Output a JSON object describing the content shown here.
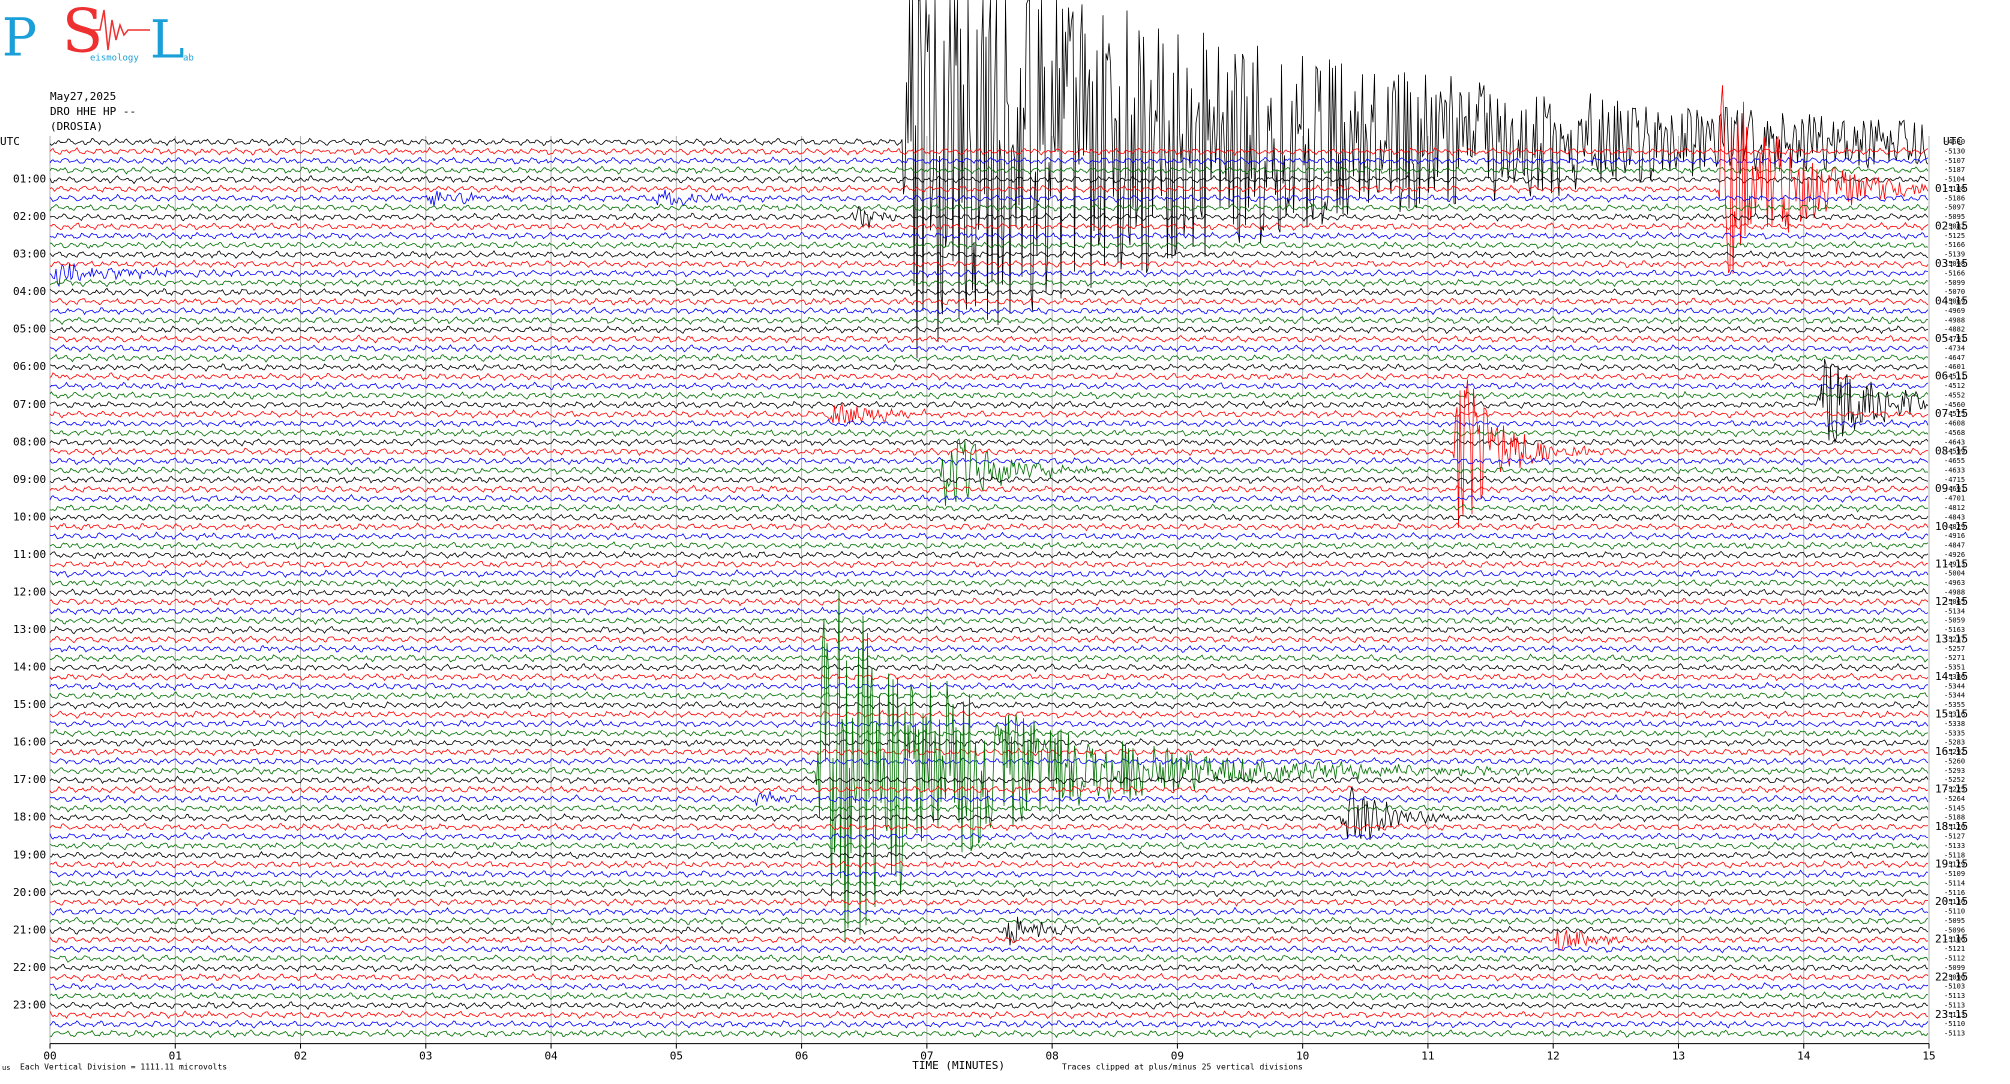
{
  "logo": {
    "letters": [
      "P",
      "S",
      "L"
    ],
    "small": [
      "eismology",
      "ab"
    ]
  },
  "header": {
    "date": "May27,2025",
    "station": "DRO HHE HP --",
    "location": "(DROSIA)"
  },
  "left_corner": "UTC",
  "right_corner": "UTC",
  "left_hours": [
    "01:00",
    "02:00",
    "03:00",
    "04:00",
    "05:00",
    "06:00",
    "07:00",
    "08:00",
    "09:00",
    "10:00",
    "11:00",
    "12:00",
    "13:00",
    "14:00",
    "15:00",
    "16:00",
    "17:00",
    "18:00",
    "19:00",
    "20:00",
    "21:00",
    "22:00",
    "23:00"
  ],
  "right_hours": [
    "01:15",
    "02:15",
    "03:15",
    "04:15",
    "05:15",
    "06:15",
    "07:15",
    "08:15",
    "09:15",
    "10:15",
    "11:15",
    "12:15",
    "13:15",
    "14:15",
    "15:15",
    "16:15",
    "17:15",
    "18:15",
    "19:15",
    "20:15",
    "21:15",
    "22:15",
    "23:15"
  ],
  "trace_offsets": [
    -4680,
    -5130,
    -5107,
    -5187,
    -5104,
    -5108,
    -5186,
    -5097,
    -5095,
    -5082,
    -5125,
    -5166,
    -5139,
    -5098,
    -5166,
    -5099,
    -5070,
    -5069,
    -4969,
    -4988,
    -4882,
    -4791,
    -4734,
    -4647,
    -4601,
    -4511,
    -4512,
    -4552,
    -4560,
    -4575,
    -4608,
    -4568,
    -4643,
    -4599,
    -4655,
    -4633,
    -4715,
    -4691,
    -4701,
    -4812,
    -4843,
    -4829,
    -4916,
    -4847,
    -4926,
    -4913,
    -5004,
    -4963,
    -4988,
    -5065,
    -5134,
    -5059,
    -5163,
    -5237,
    -5257,
    -5271,
    -5351,
    -5386,
    -5344,
    -5344,
    -5355,
    -5316,
    -5338,
    -5335,
    -5283,
    -5292,
    -5260,
    -5293,
    -5252,
    -5225,
    -5264,
    -5145,
    -5188,
    -5120,
    -5127,
    -5133,
    -5118,
    -5129,
    -5109,
    -5114,
    -5116,
    -5130,
    -5110,
    -5095,
    -5096,
    -5106,
    -5121,
    -5112,
    -5099,
    -5090,
    -5103,
    -5113,
    -5113,
    -5113,
    -5110,
    -5113
  ],
  "xaxis": {
    "label": "TIME (MINUTES)",
    "xlim": [
      0,
      15
    ],
    "xticks": [
      {
        "value": 0,
        "label": "00"
      },
      {
        "value": 1,
        "label": "01"
      },
      {
        "value": 2,
        "label": "02"
      },
      {
        "value": 3,
        "label": "03"
      },
      {
        "value": 4,
        "label": "04"
      },
      {
        "value": 5,
        "label": "05"
      },
      {
        "value": 6,
        "label": "06"
      },
      {
        "value": 7,
        "label": "07"
      },
      {
        "value": 8,
        "label": "08"
      },
      {
        "value": 9,
        "label": "09"
      },
      {
        "value": 10,
        "label": "10"
      },
      {
        "value": 11,
        "label": "11"
      },
      {
        "value": 12,
        "label": "12"
      },
      {
        "value": 13,
        "label": "13"
      },
      {
        "value": 14,
        "label": "14"
      },
      {
        "value": 15,
        "label": "15"
      }
    ]
  },
  "footer": {
    "scale_note": "Each Vertical Division = 1111.11 microvolts",
    "clip_note": "Traces clipped at plus/minus 25 vertical divisions"
  },
  "trace_colors": [
    "#000000",
    "#ff0000",
    "#0000ff",
    "#007000"
  ]
}
